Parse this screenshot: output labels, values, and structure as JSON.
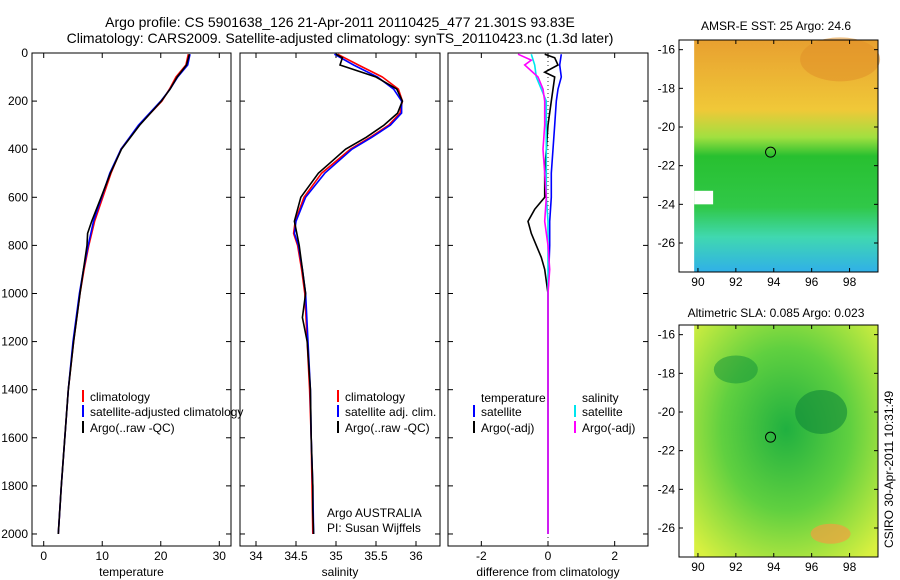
{
  "title": {
    "line1": "Argo profile: CS 5901638_126 21-Apr-2011 20110425_477 21.301S 93.83E",
    "line2": "Climatology: CARS2009. Satellite-adjusted climatology: synTS_20110423.nc (1.3d later)"
  },
  "colors": {
    "red": "#ff0000",
    "blue": "#0000ff",
    "black": "#000000",
    "cyan": "#00e5ee",
    "magenta": "#ff00ff"
  },
  "chart_data": [
    {
      "type": "line",
      "panel": "temperature",
      "xlabel": "temperature",
      "ylabel": "",
      "xlim": [
        -2,
        32
      ],
      "ylim": [
        2050,
        0
      ],
      "y_inverted": true,
      "xticks": [
        0,
        10,
        20,
        30
      ],
      "yticks": [
        0,
        200,
        400,
        600,
        800,
        1000,
        1200,
        1400,
        1600,
        1800,
        2000
      ],
      "legend": [
        "climatology",
        "satellite-adjusted climatology",
        "Argo(..raw -QC)"
      ],
      "series": [
        {
          "name": "climatology",
          "color": "red",
          "depth": [
            5,
            50,
            100,
            150,
            200,
            300,
            400,
            500,
            600,
            700,
            800,
            900,
            1000,
            1200,
            1400,
            1600,
            1800,
            2000
          ],
          "values": [
            24.7,
            24.3,
            22.6,
            21.5,
            20.2,
            16.3,
            13.2,
            11.5,
            10.1,
            8.7,
            7.7,
            6.9,
            6.2,
            5.1,
            4.2,
            3.6,
            3.0,
            2.5
          ]
        },
        {
          "name": "satellite-adjusted climatology",
          "color": "blue",
          "depth": [
            5,
            50,
            100,
            150,
            200,
            300,
            400,
            500,
            600,
            700,
            800,
            900,
            1000,
            1200,
            1400,
            1600,
            1800,
            2000
          ],
          "values": [
            25.0,
            24.6,
            22.9,
            21.6,
            20.0,
            16.2,
            13.2,
            11.3,
            9.9,
            8.5,
            7.6,
            6.8,
            6.1,
            5.0,
            4.2,
            3.6,
            3.0,
            2.5
          ]
        },
        {
          "name": "Argo(..raw -QC)",
          "color": "black",
          "depth": [
            5,
            50,
            100,
            150,
            200,
            300,
            400,
            500,
            600,
            700,
            750,
            800,
            900,
            1000,
            1200,
            1400,
            1600,
            1800,
            2000
          ],
          "values": [
            24.9,
            24.4,
            22.8,
            21.6,
            20.1,
            16.4,
            13.3,
            11.4,
            9.8,
            8.2,
            7.5,
            7.4,
            6.8,
            6.2,
            5.1,
            4.2,
            3.6,
            3.0,
            2.5
          ]
        }
      ]
    },
    {
      "type": "line",
      "panel": "salinity",
      "xlabel": "salinity",
      "ylabel": "",
      "xlim": [
        33.8,
        36.3
      ],
      "ylim": [
        2050,
        0
      ],
      "y_inverted": true,
      "xticks": [
        34,
        34.5,
        35,
        35.5,
        36
      ],
      "legend": [
        "climatology",
        "satellite adj. clim.",
        "Argo(..raw -QC)"
      ],
      "annotations": [
        "Argo AUSTRALIA",
        "PI: Susan Wijffels"
      ],
      "series": [
        {
          "name": "climatology",
          "color": "red",
          "depth": [
            5,
            50,
            100,
            150,
            200,
            250,
            300,
            350,
            400,
            500,
            600,
            700,
            750,
            800,
            900,
            1000,
            1200,
            1400,
            1600,
            1800,
            2000
          ],
          "values": [
            35.02,
            35.28,
            35.58,
            35.78,
            35.83,
            35.8,
            35.66,
            35.43,
            35.18,
            34.82,
            34.6,
            34.49,
            34.47,
            34.52,
            34.57,
            34.61,
            34.64,
            34.67,
            34.69,
            34.7,
            34.71
          ]
        },
        {
          "name": "satellite adj. clim.",
          "color": "blue",
          "depth": [
            5,
            50,
            100,
            150,
            200,
            250,
            300,
            350,
            400,
            500,
            600,
            700,
            750,
            800,
            900,
            1000,
            1200,
            1400,
            1600,
            1800,
            2000
          ],
          "values": [
            34.98,
            35.22,
            35.52,
            35.72,
            35.82,
            35.82,
            35.68,
            35.45,
            35.2,
            34.86,
            34.62,
            34.5,
            34.48,
            34.53,
            34.58,
            34.62,
            34.65,
            34.68,
            34.69,
            34.71,
            34.72
          ]
        },
        {
          "name": "Argo(..raw -QC)",
          "color": "black",
          "depth": [
            5,
            20,
            50,
            100,
            150,
            200,
            250,
            300,
            350,
            400,
            450,
            500,
            600,
            700,
            800,
            900,
            1000,
            1100,
            1200,
            1400,
            1600,
            1800,
            1900,
            2000
          ],
          "values": [
            35.0,
            35.08,
            35.05,
            35.5,
            35.76,
            35.83,
            35.77,
            35.6,
            35.38,
            35.12,
            34.95,
            34.78,
            34.56,
            34.48,
            34.54,
            34.58,
            34.62,
            34.58,
            34.64,
            34.68,
            34.69,
            34.71,
            34.71,
            34.72
          ]
        }
      ]
    },
    {
      "type": "line",
      "panel": "difference",
      "xlabel": "difference from climatology",
      "ylabel": "",
      "xlim": [
        -3,
        3
      ],
      "ylim": [
        2050,
        0
      ],
      "y_inverted": true,
      "xticks": [
        -2,
        0,
        2
      ],
      "legend_headers": [
        "temperature",
        "salinity"
      ],
      "legend": [
        "satellite",
        "Argo(-adj)",
        "satellite",
        "Argo(-adj)"
      ],
      "series": [
        {
          "name": "temperature satellite",
          "color": "blue",
          "depth": [
            5,
            50,
            100,
            150,
            200,
            300,
            400,
            500,
            600,
            700,
            800,
            1000,
            1500,
            2000
          ],
          "values": [
            0.4,
            0.35,
            0.4,
            0.3,
            0.25,
            0.2,
            0.15,
            0.1,
            0.1,
            0.05,
            0.05,
            0.0,
            0.0,
            0.0
          ]
        },
        {
          "name": "temperature Argo(-adj)",
          "color": "black",
          "depth": [
            5,
            20,
            50,
            80,
            100,
            150,
            200,
            300,
            400,
            500,
            600,
            650,
            700,
            750,
            800,
            850,
            900,
            1000,
            1200,
            1500,
            2000
          ],
          "values": [
            -0.1,
            0.2,
            0.3,
            -0.1,
            0.2,
            0.15,
            0.1,
            0.0,
            -0.05,
            -0.1,
            -0.1,
            -0.4,
            -0.6,
            -0.5,
            -0.35,
            -0.2,
            -0.1,
            0.0,
            0.0,
            0.0,
            0.0
          ]
        },
        {
          "name": "salinity satellite",
          "color": "cyan",
          "depth": [
            5,
            50,
            100,
            150,
            200,
            300,
            400,
            500,
            600,
            700,
            800,
            1000,
            1500,
            2000
          ],
          "values": [
            -0.5,
            -0.4,
            -0.35,
            -0.2,
            -0.05,
            -0.05,
            -0.05,
            -0.05,
            -0.05,
            0.0,
            0.0,
            0.0,
            0.0,
            0.0
          ]
        },
        {
          "name": "salinity Argo(-adj)",
          "color": "magenta",
          "depth": [
            5,
            30,
            50,
            100,
            150,
            200,
            300,
            400,
            500,
            600,
            700,
            800,
            900,
            1000,
            1200,
            1500,
            2000
          ],
          "values": [
            -0.9,
            -0.5,
            -0.7,
            -0.3,
            -0.15,
            -0.1,
            -0.1,
            -0.15,
            -0.1,
            -0.05,
            -0.1,
            0.0,
            0.05,
            0.0,
            0.0,
            0.0,
            0.0
          ]
        }
      ]
    },
    {
      "type": "heatmap",
      "panel": "sst-map",
      "title": "AMSR-E SST: 25 Argo: 24.6",
      "xlim": [
        89,
        99.5
      ],
      "ylim": [
        -27.5,
        -15.5
      ],
      "xticks": [
        90,
        92,
        94,
        96,
        98
      ],
      "yticks": [
        -16,
        -18,
        -20,
        -22,
        -24,
        -26
      ],
      "marker": {
        "lon": 93.83,
        "lat": -21.3
      }
    },
    {
      "type": "heatmap",
      "panel": "sla-map",
      "title": "Altimetric SLA: 0.085 Argo: 0.023",
      "xlim": [
        89,
        99.5
      ],
      "ylim": [
        -27.5,
        -15.5
      ],
      "xticks": [
        90,
        92,
        94,
        96,
        98
      ],
      "yticks": [
        -16,
        -18,
        -20,
        -22,
        -24,
        -26
      ],
      "marker": {
        "lon": 93.83,
        "lat": -21.3
      }
    }
  ],
  "side_label": "CSIRO 30-Apr-2011 10:31:49"
}
